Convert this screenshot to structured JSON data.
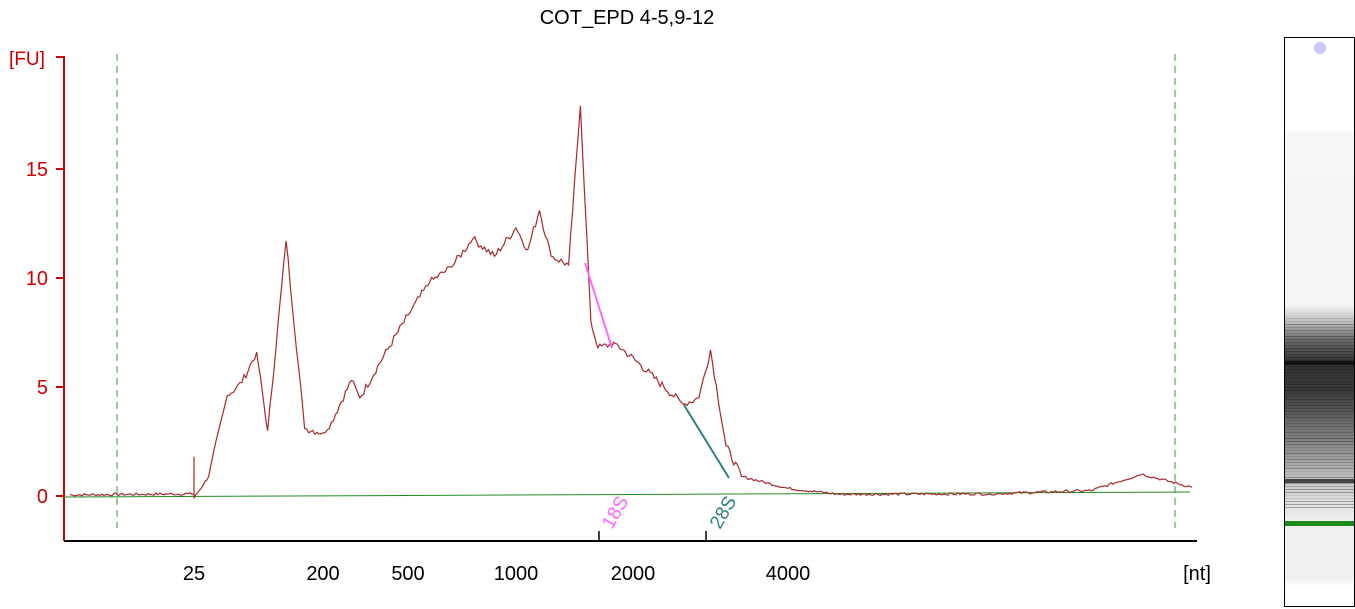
{
  "chart_data": {
    "type": "line",
    "title": "COT_EPD 4-5,9-12",
    "xlabel": "[nt]",
    "ylabel": "[FU]",
    "ylim": [
      -2,
      19.5
    ],
    "x_axis_scale": "nonlinear (time-based ladder)",
    "x_tick_labels": [
      "25",
      "200",
      "500",
      "1000",
      "2000",
      "4000"
    ],
    "y_tick_labels": [
      "0",
      "5",
      "10",
      "15"
    ],
    "grid": false,
    "colors": {
      "trace": "#a52a2a",
      "baseline": "#228b22",
      "axis_y": "#cc0000",
      "axis_x": "#000000",
      "markers": "#339933",
      "peak_18S": "#ff66ff",
      "peak_28S": "#2f7f7f"
    },
    "peak_annotations": [
      {
        "label": "18S",
        "color": "#ff66ff"
      },
      {
        "label": "28S",
        "color": "#2f7f7f"
      }
    ],
    "trace_points_nt_fu": [
      [
        10,
        0.05
      ],
      [
        25,
        0.1
      ],
      [
        25,
        1.8
      ],
      [
        25,
        -0.1
      ],
      [
        30,
        0.15
      ],
      [
        45,
        0.9
      ],
      [
        70,
        4.6
      ],
      [
        90,
        5.2
      ],
      [
        110,
        6.6
      ],
      [
        125,
        3.0
      ],
      [
        150,
        11.7
      ],
      [
        175,
        3.1
      ],
      [
        200,
        2.9
      ],
      [
        230,
        3.4
      ],
      [
        300,
        5.3
      ],
      [
        330,
        4.5
      ],
      [
        400,
        6.1
      ],
      [
        500,
        8.3
      ],
      [
        600,
        9.8
      ],
      [
        700,
        10.5
      ],
      [
        800,
        11.8
      ],
      [
        900,
        11.0
      ],
      [
        1000,
        12.3
      ],
      [
        1100,
        11.3
      ],
      [
        1200,
        13.1
      ],
      [
        1300,
        11.0
      ],
      [
        1450,
        10.6
      ],
      [
        1550,
        17.9
      ],
      [
        1640,
        8.0
      ],
      [
        1700,
        6.8
      ],
      [
        1850,
        7.0
      ],
      [
        2100,
        6.0
      ],
      [
        2400,
        5.0
      ],
      [
        2650,
        4.2
      ],
      [
        2850,
        4.5
      ],
      [
        3000,
        6.7
      ],
      [
        3200,
        2.3
      ],
      [
        3400,
        0.9
      ],
      [
        4000,
        0.35
      ],
      [
        5000,
        0.08
      ],
      [
        8000,
        0.1
      ],
      [
        10000,
        0.25
      ],
      [
        11000,
        1.0
      ],
      [
        12000,
        0.4
      ]
    ],
    "peak_18S_x_nt": 1600,
    "peak_28S_x_nt": 3050
  }
}
